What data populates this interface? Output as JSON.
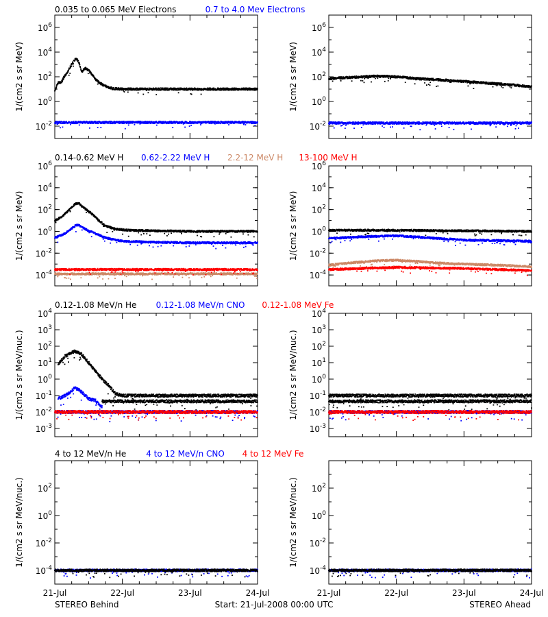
{
  "colors": {
    "black": "#000000",
    "blue": "#0000ff",
    "tan": "#cc8866",
    "red": "#ff0000"
  },
  "footer": {
    "left": "STEREO Behind",
    "center": "Start: 21-Jul-2008 00:00 UTC",
    "right": "STEREO Ahead"
  },
  "chart_data": [
    {
      "type": "scatter",
      "row": 1,
      "column": "left",
      "legend": [
        {
          "text": "0.035 to 0.065 MeV Electrons",
          "color": "#000000"
        },
        {
          "text": "0.7 to 4.0 Mev Electrons",
          "color": "#0000ff"
        }
      ],
      "ylabel": "1/(cm2 s sr MeV)",
      "yscale": "log",
      "ylim_exp": [
        -3,
        7
      ],
      "yticks": [
        {
          "base": "10",
          "exp": "-2"
        },
        {
          "base": "10",
          "exp": "0"
        },
        {
          "base": "10",
          "exp": "2"
        },
        {
          "base": "10",
          "exp": "4"
        },
        {
          "base": "10",
          "exp": "6"
        }
      ],
      "xlim_days": [
        0,
        3
      ],
      "series": [
        {
          "color": "#000000",
          "points": [
            [
              0.0,
              0.9
            ],
            [
              0.05,
              1.5
            ],
            [
              0.1,
              1.6
            ],
            [
              0.14,
              2.0
            ],
            [
              0.2,
              2.5
            ],
            [
              0.27,
              3.2
            ],
            [
              0.32,
              3.5
            ],
            [
              0.36,
              3.1
            ],
            [
              0.4,
              2.4
            ],
            [
              0.45,
              2.7
            ],
            [
              0.5,
              2.5
            ],
            [
              0.55,
              2.2
            ],
            [
              0.62,
              1.7
            ],
            [
              0.72,
              1.3
            ],
            [
              0.85,
              1.05
            ],
            [
              1.0,
              1.0
            ],
            [
              1.5,
              1.0
            ],
            [
              2.0,
              1.0
            ],
            [
              2.5,
              1.0
            ],
            [
              3.0,
              1.0
            ]
          ]
        },
        {
          "color": "#0000ff",
          "points": [
            [
              0.0,
              -1.7
            ],
            [
              3.0,
              -1.7
            ]
          ]
        }
      ]
    },
    {
      "type": "scatter",
      "row": 1,
      "column": "right",
      "ylabel": "1/(cm2 s sr MeV)",
      "yscale": "log",
      "ylim_exp": [
        -3,
        7
      ],
      "yticks": [
        {
          "base": "10",
          "exp": "-2"
        },
        {
          "base": "10",
          "exp": "0"
        },
        {
          "base": "10",
          "exp": "2"
        },
        {
          "base": "10",
          "exp": "4"
        },
        {
          "base": "10",
          "exp": "6"
        }
      ],
      "xlim_days": [
        0,
        3
      ],
      "series": [
        {
          "color": "#000000",
          "points": [
            [
              0.0,
              1.85
            ],
            [
              0.3,
              1.95
            ],
            [
              0.7,
              2.05
            ],
            [
              1.0,
              2.0
            ],
            [
              1.3,
              1.85
            ],
            [
              1.8,
              1.7
            ],
            [
              2.3,
              1.5
            ],
            [
              2.7,
              1.35
            ],
            [
              3.0,
              1.2
            ]
          ]
        },
        {
          "color": "#0000ff",
          "points": [
            [
              0.0,
              -1.75
            ],
            [
              3.0,
              -1.75
            ]
          ]
        }
      ]
    },
    {
      "type": "scatter",
      "row": 2,
      "column": "left",
      "legend": [
        {
          "text": "0.14-0.62 MeV H",
          "color": "#000000"
        },
        {
          "text": "0.62-2.22 MeV H",
          "color": "#0000ff"
        },
        {
          "text": "2.2-12 MeV H",
          "color": "#cc8866"
        },
        {
          "text": "13-100 MeV H",
          "color": "#ff0000"
        }
      ],
      "ylabel": "1/(cm2 s sr MeV)",
      "yscale": "log",
      "ylim_exp": [
        -5,
        6
      ],
      "yticks": [
        {
          "base": "10",
          "exp": "-4"
        },
        {
          "base": "10",
          "exp": "-2"
        },
        {
          "base": "10",
          "exp": "0"
        },
        {
          "base": "10",
          "exp": "2"
        },
        {
          "base": "10",
          "exp": "4"
        },
        {
          "base": "10",
          "exp": "6"
        }
      ],
      "xlim_days": [
        0,
        3
      ],
      "series": [
        {
          "color": "#000000",
          "points": [
            [
              0.0,
              1.0
            ],
            [
              0.1,
              1.3
            ],
            [
              0.2,
              1.9
            ],
            [
              0.3,
              2.5
            ],
            [
              0.35,
              2.6
            ],
            [
              0.42,
              2.2
            ],
            [
              0.55,
              1.6
            ],
            [
              0.65,
              1.0
            ],
            [
              0.75,
              0.5
            ],
            [
              0.9,
              0.2
            ],
            [
              1.1,
              0.1
            ],
            [
              1.5,
              0.05
            ],
            [
              2.0,
              0.0
            ],
            [
              3.0,
              0.0
            ]
          ]
        },
        {
          "color": "#0000ff",
          "points": [
            [
              0.0,
              -0.6
            ],
            [
              0.15,
              -0.2
            ],
            [
              0.3,
              0.5
            ],
            [
              0.35,
              0.6
            ],
            [
              0.45,
              0.2
            ],
            [
              0.6,
              -0.2
            ],
            [
              0.75,
              -0.6
            ],
            [
              1.0,
              -0.9
            ],
            [
              1.5,
              -1.0
            ],
            [
              2.0,
              -1.05
            ],
            [
              3.0,
              -1.05
            ]
          ]
        },
        {
          "color": "#cc8866",
          "points": [
            [
              0.0,
              -3.9
            ],
            [
              3.0,
              -3.9
            ]
          ]
        },
        {
          "color": "#ff0000",
          "points": [
            [
              0.0,
              -3.5
            ],
            [
              3.0,
              -3.5
            ]
          ]
        }
      ]
    },
    {
      "type": "scatter",
      "row": 2,
      "column": "right",
      "ylabel": "1/(cm2 s sr MeV)",
      "yscale": "log",
      "ylim_exp": [
        -5,
        6
      ],
      "yticks": [
        {
          "base": "10",
          "exp": "-4"
        },
        {
          "base": "10",
          "exp": "-2"
        },
        {
          "base": "10",
          "exp": "0"
        },
        {
          "base": "10",
          "exp": "2"
        },
        {
          "base": "10",
          "exp": "4"
        },
        {
          "base": "10",
          "exp": "6"
        }
      ],
      "xlim_days": [
        0,
        3
      ],
      "series": [
        {
          "color": "#000000",
          "points": [
            [
              0.0,
              0.1
            ],
            [
              1.0,
              0.1
            ],
            [
              2.0,
              0.05
            ],
            [
              3.0,
              0.0
            ]
          ]
        },
        {
          "color": "#0000ff",
          "points": [
            [
              0.0,
              -0.65
            ],
            [
              0.5,
              -0.5
            ],
            [
              1.0,
              -0.4
            ],
            [
              1.5,
              -0.6
            ],
            [
              2.0,
              -0.8
            ],
            [
              3.0,
              -0.9
            ]
          ]
        },
        {
          "color": "#cc8866",
          "points": [
            [
              0.0,
              -3.1
            ],
            [
              0.3,
              -2.9
            ],
            [
              0.7,
              -2.7
            ],
            [
              1.0,
              -2.65
            ],
            [
              1.3,
              -2.75
            ],
            [
              1.6,
              -2.9
            ],
            [
              2.0,
              -3.0
            ],
            [
              2.5,
              -3.1
            ],
            [
              3.0,
              -3.25
            ]
          ]
        },
        {
          "color": "#ff0000",
          "points": [
            [
              0.0,
              -3.5
            ],
            [
              1.0,
              -3.3
            ],
            [
              2.0,
              -3.4
            ],
            [
              3.0,
              -3.6
            ]
          ]
        }
      ]
    },
    {
      "type": "scatter",
      "row": 3,
      "column": "left",
      "legend": [
        {
          "text": "0.12-1.08 MeV/n He",
          "color": "#000000"
        },
        {
          "text": "0.12-1.08 MeV/n CNO",
          "color": "#0000ff"
        },
        {
          "text": "0.12-1.08 MeV Fe",
          "color": "#ff0000"
        }
      ],
      "ylabel": "1/(cm2 s sr MeV/nuc.)",
      "yscale": "log",
      "ylim_exp": [
        -3.5,
        4
      ],
      "yticks": [
        {
          "base": "10",
          "exp": "-3"
        },
        {
          "base": "10",
          "exp": "-2"
        },
        {
          "base": "10",
          "exp": "-1"
        },
        {
          "base": "10",
          "exp": "0"
        },
        {
          "base": "10",
          "exp": "1"
        },
        {
          "base": "10",
          "exp": "2"
        },
        {
          "base": "10",
          "exp": "3"
        },
        {
          "base": "10",
          "exp": "4"
        }
      ],
      "xlim_days": [
        0,
        3
      ],
      "series": [
        {
          "color": "#000000",
          "points": [
            [
              0.05,
              0.9
            ],
            [
              0.15,
              1.4
            ],
            [
              0.25,
              1.6
            ],
            [
              0.3,
              1.7
            ],
            [
              0.4,
              1.5
            ],
            [
              0.5,
              1.0
            ],
            [
              0.6,
              0.5
            ],
            [
              0.7,
              0.0
            ],
            [
              0.8,
              -0.4
            ],
            [
              0.9,
              -0.9
            ],
            [
              1.0,
              -1.0
            ],
            [
              1.5,
              -1.0
            ],
            [
              2.0,
              -1.0
            ],
            [
              3.0,
              -1.0
            ]
          ]
        },
        {
          "color": "#000000",
          "points": [
            [
              0.7,
              -1.35
            ],
            [
              3.0,
              -1.35
            ]
          ]
        },
        {
          "color": "#0000ff",
          "points": [
            [
              0.05,
              -1.2
            ],
            [
              0.2,
              -0.9
            ],
            [
              0.3,
              -0.5
            ],
            [
              0.4,
              -0.8
            ],
            [
              0.5,
              -1.2
            ],
            [
              0.6,
              -1.3
            ],
            [
              0.7,
              -1.7
            ]
          ]
        },
        {
          "color": "#0000ff",
          "points": [
            [
              0.0,
              -2.0
            ],
            [
              3.0,
              -2.0
            ]
          ]
        },
        {
          "color": "#ff0000",
          "points": [
            [
              0.0,
              -2.0
            ],
            [
              3.0,
              -2.0
            ]
          ]
        }
      ]
    },
    {
      "type": "scatter",
      "row": 3,
      "column": "right",
      "ylabel": "1/(cm2 s sr MeV/nuc.)",
      "yscale": "log",
      "ylim_exp": [
        -3.5,
        4
      ],
      "yticks": [
        {
          "base": "10",
          "exp": "-3"
        },
        {
          "base": "10",
          "exp": "-2"
        },
        {
          "base": "10",
          "exp": "-1"
        },
        {
          "base": "10",
          "exp": "0"
        },
        {
          "base": "10",
          "exp": "1"
        },
        {
          "base": "10",
          "exp": "2"
        },
        {
          "base": "10",
          "exp": "3"
        },
        {
          "base": "10",
          "exp": "4"
        }
      ],
      "xlim_days": [
        0,
        3
      ],
      "series": [
        {
          "color": "#000000",
          "points": [
            [
              0.0,
              -1.35
            ],
            [
              3.0,
              -1.35
            ]
          ]
        },
        {
          "color": "#000000",
          "points": [
            [
              0.0,
              -1.0
            ],
            [
              3.0,
              -1.0
            ]
          ]
        },
        {
          "color": "#0000ff",
          "points": [
            [
              0.0,
              -2.0
            ],
            [
              3.0,
              -2.0
            ]
          ]
        },
        {
          "color": "#ff0000",
          "points": [
            [
              0.0,
              -2.0
            ],
            [
              3.0,
              -2.0
            ]
          ]
        }
      ]
    },
    {
      "type": "scatter",
      "row": 4,
      "column": "left",
      "legend": [
        {
          "text": "4 to 12 MeV/n He",
          "color": "#000000"
        },
        {
          "text": "4 to 12 MeV/n CNO",
          "color": "#0000ff"
        },
        {
          "text": "4 to 12 MeV Fe",
          "color": "#ff0000"
        }
      ],
      "ylabel": "1/(cm2 s sr MeV/nuc.)",
      "yscale": "log",
      "ylim_exp": [
        -5,
        4
      ],
      "yticks": [
        {
          "base": "10",
          "exp": "-4"
        },
        {
          "base": "10",
          "exp": "-2"
        },
        {
          "base": "10",
          "exp": "0"
        },
        {
          "base": "10",
          "exp": "2"
        }
      ],
      "xlim_days": [
        0,
        3
      ],
      "series": [
        {
          "color": "#0000ff",
          "points": [
            [
              0.0,
              -4.0
            ],
            [
              3.0,
              -4.0
            ]
          ]
        },
        {
          "color": "#000000",
          "points": [
            [
              0.0,
              -4.0
            ],
            [
              3.0,
              -4.0
            ]
          ]
        }
      ]
    },
    {
      "type": "scatter",
      "row": 4,
      "column": "right",
      "ylabel": "1/(cm2 s sr MeV/nuc.)",
      "yscale": "log",
      "ylim_exp": [
        -5,
        4
      ],
      "yticks": [
        {
          "base": "10",
          "exp": "-4"
        },
        {
          "base": "10",
          "exp": "-2"
        },
        {
          "base": "10",
          "exp": "0"
        },
        {
          "base": "10",
          "exp": "2"
        }
      ],
      "xlim_days": [
        0,
        3
      ],
      "series": [
        {
          "color": "#0000ff",
          "points": [
            [
              0.0,
              -4.0
            ],
            [
              3.0,
              -4.0
            ]
          ]
        },
        {
          "color": "#000000",
          "points": [
            [
              0.0,
              -4.0
            ],
            [
              3.0,
              -4.0
            ]
          ]
        }
      ]
    }
  ],
  "xticks": [
    {
      "label": "21-Jul",
      "day": 0
    },
    {
      "label": "22-Jul",
      "day": 1
    },
    {
      "label": "23-Jul",
      "day": 2
    },
    {
      "label": "24-Jul",
      "day": 3
    }
  ]
}
